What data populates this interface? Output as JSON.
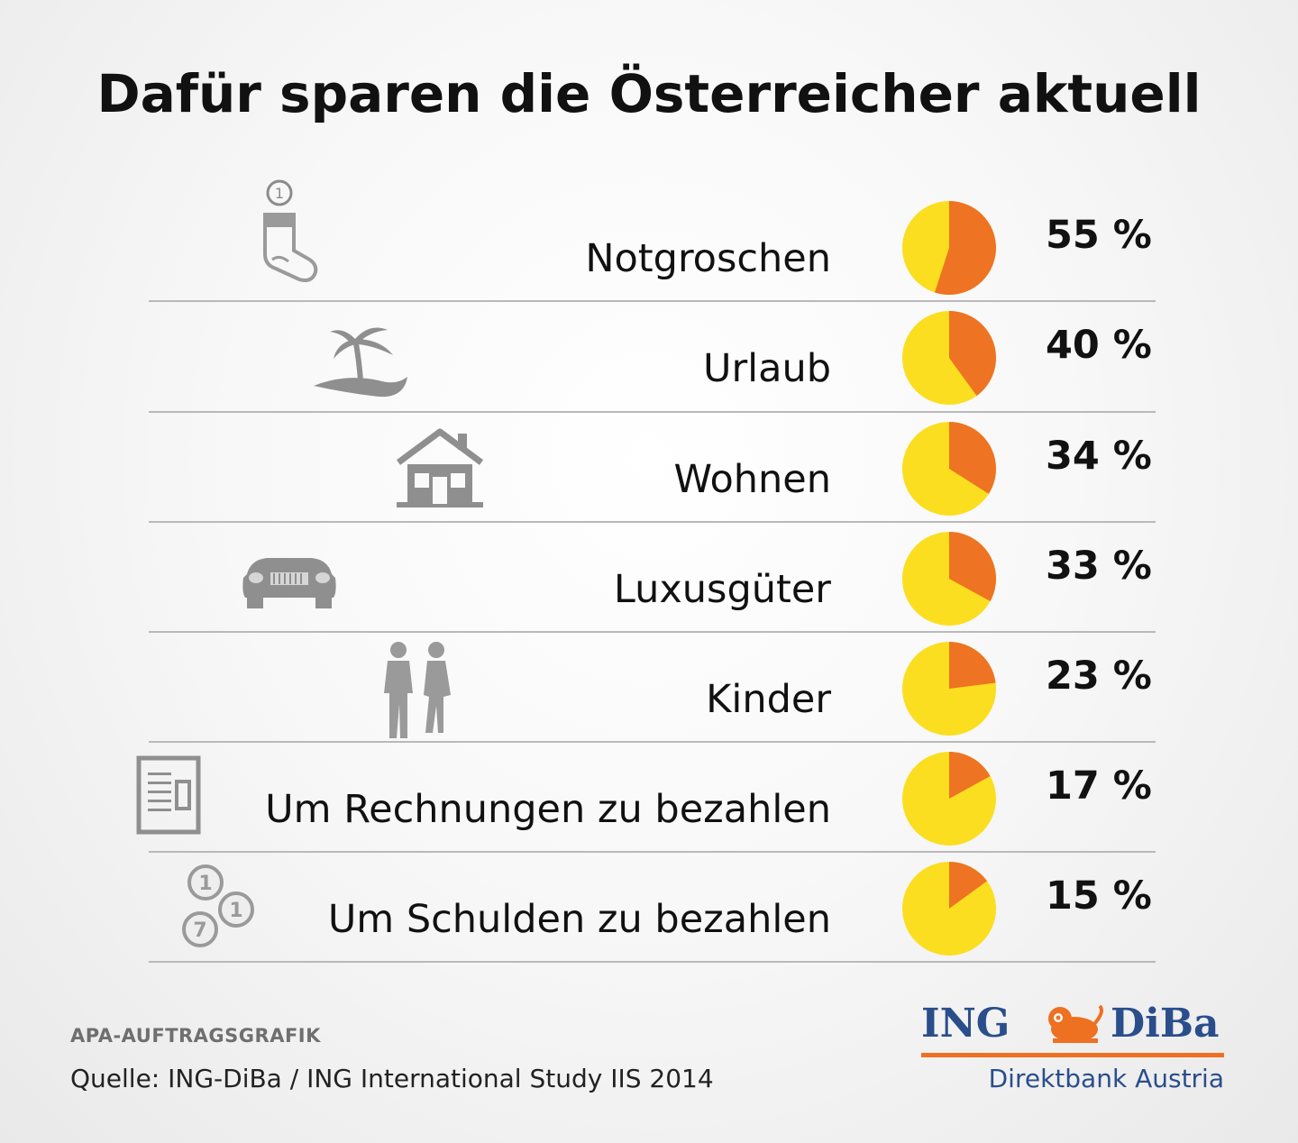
{
  "title": "Dafür sparen die Österreicher aktuell",
  "chart_data": {
    "type": "pie",
    "title": "Dafür sparen die Österreicher aktuell",
    "categories": [
      "Notgroschen",
      "Urlaub",
      "Wohnen",
      "Luxusgüter",
      "Kinder",
      "Um Rechnungen zu bezahlen",
      "Um Schulden zu bezahlen"
    ],
    "values": [
      55,
      40,
      34,
      33,
      23,
      17,
      15
    ],
    "value_labels": [
      "55 %",
      "40 %",
      "34 %",
      "33 %",
      "23 %",
      "17 %",
      "15 %"
    ],
    "unit": "%",
    "colors": {
      "share": "#ee7322",
      "rest": "#fbde1f"
    }
  },
  "rows": [
    {
      "label": "Notgroschen",
      "pct": "55 %",
      "value": 55,
      "icon": "sock-icon"
    },
    {
      "label": "Urlaub",
      "pct": "40 %",
      "value": 40,
      "icon": "palm-island-icon"
    },
    {
      "label": "Wohnen",
      "pct": "34 %",
      "value": 34,
      "icon": "house-icon"
    },
    {
      "label": "Luxusgüter",
      "pct": "33 %",
      "value": 33,
      "icon": "car-icon"
    },
    {
      "label": "Kinder",
      "pct": "23 %",
      "value": 23,
      "icon": "children-icon"
    },
    {
      "label": "Um Rechnungen zu bezahlen",
      "pct": "17 %",
      "value": 17,
      "icon": "invoice-icon"
    },
    {
      "label": "Um Schulden zu bezahlen",
      "pct": "15 %",
      "value": 15,
      "icon": "coins-icon"
    }
  ],
  "footer": {
    "tag": "APA-AUFTRAGSGRAFIK",
    "source": "Quelle: ING-DiBa / ING International Study IIS 2014"
  },
  "logo": {
    "left": "ING",
    "right": "DiBa",
    "tagline": "Direktbank Austria",
    "primary_color": "#2a4e8c",
    "accent_color": "#ee7021"
  }
}
